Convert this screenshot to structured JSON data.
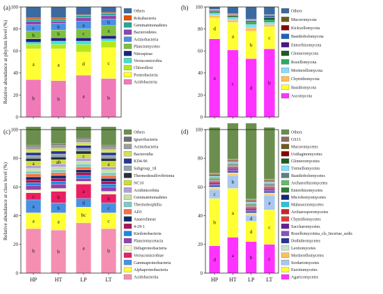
{
  "chart_data": [
    {
      "panel_label": "(a)",
      "type": "stacked-bar",
      "ylabel": "Relative abundance at phylum level (%)",
      "ylim": [
        0,
        100
      ],
      "yticks": [
        0,
        20,
        40,
        60,
        80,
        100
      ],
      "categories": [
        "HP",
        "HT",
        "LP",
        "LT"
      ],
      "show_xlabels": false,
      "series": [
        {
          "name": "Acidobacteria",
          "color": "#f07ab8",
          "values": [
            34,
            33,
            38,
            35
          ],
          "labels": [
            "b",
            "b",
            "a",
            "b"
          ]
        },
        {
          "name": "Proteobacteria",
          "color": "#ffff33",
          "values": [
            28,
            29,
            21,
            28
          ],
          "labels": [
            "a",
            "a",
            "d",
            "c"
          ]
        },
        {
          "name": "Chloroflexi",
          "color": "#b5e61d",
          "values": [
            4,
            4,
            7,
            6
          ],
          "labels": [
            "",
            "",
            "",
            ""
          ]
        },
        {
          "name": "Verrucomicrobia",
          "color": "#40e0d0",
          "values": [
            2,
            3,
            3,
            2
          ],
          "labels": [
            "",
            "",
            "",
            ""
          ]
        },
        {
          "name": "Nitrospirae",
          "color": "#1a237e",
          "values": [
            3,
            3,
            3,
            3
          ],
          "labels": [
            "",
            "",
            "",
            ""
          ]
        },
        {
          "name": "Planctomycetes",
          "color": "#7fbf3f",
          "values": [
            7,
            7,
            8,
            9
          ],
          "labels": [
            "b",
            "b",
            "c",
            "a"
          ]
        },
        {
          "name": "Actinobacteria",
          "color": "#4a90e2",
          "values": [
            6,
            6,
            7,
            6
          ],
          "labels": [
            "c",
            "b",
            "a",
            "b"
          ]
        },
        {
          "name": "Bacteroidetes",
          "color": "#8e44ad",
          "values": [
            3,
            2,
            3,
            3
          ],
          "labels": [
            "",
            "",
            "",
            ""
          ]
        },
        {
          "name": "Gemmatimonadetes",
          "color": "#26a69a",
          "values": [
            2,
            2,
            2,
            2
          ],
          "labels": [
            "",
            "",
            "",
            ""
          ]
        },
        {
          "name": "Rokubacteria",
          "color": "#e65100",
          "values": [
            1,
            1,
            1,
            1
          ],
          "labels": [
            "",
            "",
            "",
            ""
          ]
        },
        {
          "name": "Others",
          "color": "#3b6aa0",
          "values": [
            10,
            10,
            7,
            5
          ],
          "labels": [
            "",
            "",
            "",
            ""
          ]
        }
      ]
    },
    {
      "panel_label": "(b)",
      "type": "stacked-bar",
      "ylabel": "",
      "ylim": [
        0,
        100
      ],
      "yticks": [
        0,
        20,
        40,
        60,
        80,
        100
      ],
      "categories": [
        "HP",
        "HT",
        "LP",
        "LT"
      ],
      "show_xlabels": false,
      "series": [
        {
          "name": "Ascomycota",
          "color": "#ff33ff",
          "values": [
            71,
            61,
            53,
            62
          ],
          "labels": [
            "a",
            "c",
            "d",
            "b"
          ]
        },
        {
          "name": "Basidiomycota",
          "color": "#ffff33",
          "values": [
            19,
            25,
            25,
            20
          ],
          "labels": [
            "d",
            "a",
            "b",
            "c"
          ]
        },
        {
          "name": "Chytridiomycota",
          "color": "#ffc04d",
          "values": [
            2,
            2,
            3,
            2
          ],
          "labels": [
            "",
            "",
            "",
            ""
          ]
        },
        {
          "name": "Mortierellomycota",
          "color": "#7fdfff",
          "values": [
            2,
            2,
            3,
            2
          ],
          "labels": [
            "",
            "",
            "",
            ""
          ]
        },
        {
          "name": "Rozellomycota",
          "color": "#27ae60",
          "values": [
            1,
            1,
            2,
            2
          ],
          "labels": [
            "",
            "",
            "",
            ""
          ]
        },
        {
          "name": "Glomeromycota",
          "color": "#1b5e20",
          "values": [
            1,
            1,
            1,
            2
          ],
          "labels": [
            "",
            "",
            "",
            ""
          ]
        },
        {
          "name": "Entorrhizomycota",
          "color": "#4a148c",
          "values": [
            0.5,
            0.5,
            0.5,
            1
          ],
          "labels": [
            "",
            "",
            "",
            ""
          ]
        },
        {
          "name": "Basidiobolomycota",
          "color": "#1565c0",
          "values": [
            0.5,
            0.5,
            0.5,
            1
          ],
          "labels": [
            "",
            "",
            "",
            ""
          ]
        },
        {
          "name": "Kickxellomycota",
          "color": "#8b0000",
          "values": [
            0.5,
            0.5,
            0.5,
            0.5
          ],
          "labels": [
            "",
            "",
            "",
            ""
          ]
        },
        {
          "name": "Mucoromycota",
          "color": "#6d5d1a",
          "values": [
            0.5,
            0.5,
            0.5,
            0.5
          ],
          "labels": [
            "",
            "",
            "",
            ""
          ]
        },
        {
          "name": "Others",
          "color": "#3b6aa0",
          "values": [
            2,
            6,
            11,
            7
          ],
          "labels": [
            "",
            "",
            "",
            ""
          ]
        }
      ]
    },
    {
      "panel_label": "(c)",
      "type": "stacked-bar",
      "ylabel": "Relative abundance at class level (%)",
      "ylim": [
        0,
        100
      ],
      "yticks": [
        0,
        20,
        40,
        60,
        80,
        100
      ],
      "categories": [
        "HP",
        "HT",
        "LP",
        "LT"
      ],
      "show_xlabels": true,
      "series": [
        {
          "name": "Acidobacteriia",
          "color": "#f48fb1",
          "values": [
            31,
            30,
            35,
            31
          ],
          "labels": [
            "b",
            "b",
            "a",
            "b"
          ]
        },
        {
          "name": "Alphaproteobacteria",
          "color": "#ffff33",
          "values": [
            11,
            12,
            11,
            11
          ],
          "labels": [
            "a",
            "a",
            "bc",
            "c"
          ]
        },
        {
          "name": "Gammaproteobacteria",
          "color": "#4a90e2",
          "values": [
            9,
            7,
            6,
            7
          ],
          "labels": [
            "a",
            "b",
            "d",
            "c"
          ]
        },
        {
          "name": "Verrucomicrobiae",
          "color": "#e91e63",
          "values": [
            5,
            8,
            10,
            6
          ],
          "labels": [
            "c",
            "b",
            "a",
            "b"
          ]
        },
        {
          "name": "Deltaproteobacteria",
          "color": "#f5f5c8",
          "values": [
            2,
            2,
            2,
            2
          ],
          "labels": [
            "",
            "",
            "",
            ""
          ]
        },
        {
          "name": "Planctomycetacia",
          "color": "#8e44ad",
          "values": [
            3,
            3,
            2,
            3
          ],
          "labels": [
            "",
            "",
            "",
            ""
          ]
        },
        {
          "name": "Ktedonobacteria",
          "color": "#1e88e5",
          "values": [
            2,
            2,
            2,
            2
          ],
          "labels": [
            "",
            "",
            "",
            ""
          ]
        },
        {
          "name": "4-29-1",
          "color": "#ad1457",
          "values": [
            2,
            2,
            2,
            2
          ],
          "labels": [
            "",
            "",
            "",
            ""
          ]
        },
        {
          "name": "Anaerolineae",
          "color": "#0d2b6b",
          "values": [
            2,
            2,
            2,
            2
          ],
          "labels": [
            "",
            "",
            "",
            ""
          ]
        },
        {
          "name": "AD3",
          "color": "#ff7043",
          "values": [
            2,
            2,
            2,
            2
          ],
          "labels": [
            "",
            "",
            "",
            ""
          ]
        },
        {
          "name": "Thermoleophilia",
          "color": "#80cbc4",
          "values": [
            2,
            2,
            2,
            2
          ],
          "labels": [
            "",
            "",
            "",
            ""
          ]
        },
        {
          "name": "Gemmatimonadetes",
          "color": "#c5e1a5",
          "values": [
            2,
            2,
            2,
            2
          ],
          "labels": [
            "",
            "",
            "",
            ""
          ]
        },
        {
          "name": "Acidimicrobiia",
          "color": "#b39ddb",
          "values": [
            2,
            2,
            2,
            2
          ],
          "labels": [
            "",
            "",
            "",
            ""
          ]
        },
        {
          "name": "NC10",
          "color": "#cddc39",
          "values": [
            3,
            3,
            3,
            4
          ],
          "labels": [
            "a",
            "ab",
            "c",
            "a"
          ]
        },
        {
          "name": "Thermodesulfovibrionia",
          "color": "#263238",
          "values": [
            2,
            2,
            2,
            2
          ],
          "labels": [
            "",
            "",
            "",
            ""
          ]
        },
        {
          "name": "Subgroup_18",
          "color": "#90a4ae",
          "values": [
            2,
            2,
            2,
            2
          ],
          "labels": [
            "",
            "",
            "",
            ""
          ]
        },
        {
          "name": "KD4-96",
          "color": "#283593",
          "values": [
            2,
            2,
            2,
            2
          ],
          "labels": [
            "",
            "",
            "",
            ""
          ]
        },
        {
          "name": "Bacteroidia",
          "color": "#d4e157",
          "values": [
            2,
            2,
            2,
            2
          ],
          "labels": [
            "",
            "",
            "",
            ""
          ]
        },
        {
          "name": "Actinobacteria",
          "color": "#9e9e9e",
          "values": [
            2,
            2,
            2,
            2
          ],
          "labels": [
            "",
            "",
            "",
            ""
          ]
        },
        {
          "name": "Ignavibacteria",
          "color": "#6d6d6d",
          "values": [
            1,
            1,
            1,
            1
          ],
          "labels": [
            "",
            "",
            "",
            ""
          ]
        },
        {
          "name": "Others",
          "color": "#6b8e4e",
          "values": [
            13,
            12,
            8,
            13
          ],
          "labels": [
            "",
            "",
            "",
            ""
          ]
        }
      ]
    },
    {
      "panel_label": "(d)",
      "type": "stacked-bar",
      "ylabel": "",
      "ylim": [
        0,
        100
      ],
      "yticks": [
        0,
        20,
        40,
        60,
        80,
        100
      ],
      "categories": [
        "HP",
        "HT",
        "LP",
        "LT"
      ],
      "show_xlabels": true,
      "series": [
        {
          "name": "Agaricomycetes",
          "color": "#ff33ff",
          "values": [
            19,
            25,
            22,
            20
          ],
          "labels": [
            "d",
            "a",
            "b",
            "c"
          ]
        },
        {
          "name": "Eurotiomycetes",
          "color": "#ffff33",
          "values": [
            33,
            34,
            14,
            24
          ],
          "labels": [
            "b",
            "a",
            "d",
            "c"
          ]
        },
        {
          "name": "Sordariomycetes",
          "color": "#a8c8f0",
          "values": [
            6,
            9,
            4,
            10
          ],
          "labels": [
            "c",
            "b",
            "d",
            "a"
          ]
        },
        {
          "name": "Mortierellomycetes",
          "color": "#ffc04d",
          "values": [
            1,
            1,
            1,
            1
          ],
          "labels": [
            "",
            "",
            "",
            ""
          ]
        },
        {
          "name": "Leotiomycetes",
          "color": "#c8e6c9",
          "values": [
            1,
            1,
            1,
            1
          ],
          "labels": [
            "",
            "",
            "",
            ""
          ]
        },
        {
          "name": "Dothideomycetes",
          "color": "#283593",
          "values": [
            1,
            1,
            1,
            1
          ],
          "labels": [
            "",
            "",
            "",
            ""
          ]
        },
        {
          "name": "Rozellomycotina_cls_Incertae_sedis",
          "color": "#7e57c2",
          "values": [
            1,
            1,
            1,
            1
          ],
          "labels": [
            "",
            "",
            "",
            ""
          ]
        },
        {
          "name": "Saccharomycetes",
          "color": "#6a1b9a",
          "values": [
            1,
            1,
            1,
            1
          ],
          "labels": [
            "",
            "",
            "",
            ""
          ]
        },
        {
          "name": "Chytridiomycetes",
          "color": "#e53935",
          "values": [
            1,
            1,
            1,
            1
          ],
          "labels": [
            "",
            "",
            "",
            ""
          ]
        },
        {
          "name": "Archaeosporomycetes",
          "color": "#c62828",
          "values": [
            0.5,
            0.5,
            0.5,
            0.5
          ],
          "labels": [
            "",
            "",
            "",
            ""
          ]
        },
        {
          "name": "Malasseziomycetes",
          "color": "#26c6da",
          "values": [
            0.5,
            0.5,
            0.5,
            0.5
          ],
          "labels": [
            "",
            "",
            "",
            ""
          ]
        },
        {
          "name": "Microbotryomycetes",
          "color": "#1a237e",
          "values": [
            0.5,
            0.5,
            0.5,
            0.5
          ],
          "labels": [
            "",
            "",
            "",
            ""
          ]
        },
        {
          "name": "Entorrhizomycetes",
          "color": "#2e7d32",
          "values": [
            0.5,
            0.5,
            0.5,
            0.5
          ],
          "labels": [
            "",
            "",
            "",
            ""
          ]
        },
        {
          "name": "Archaeorhizomycetes",
          "color": "#66bb6a",
          "values": [
            0.5,
            0.5,
            0.5,
            0.5
          ],
          "labels": [
            "",
            "",
            "",
            ""
          ]
        },
        {
          "name": "Basidiobolomycetes",
          "color": "#607d8b",
          "values": [
            0.5,
            0.5,
            0.5,
            0.5
          ],
          "labels": [
            "",
            "",
            "",
            ""
          ]
        },
        {
          "name": "Tremellomycetes",
          "color": "#7fdfff",
          "values": [
            0.5,
            0.5,
            0.5,
            0.5
          ],
          "labels": [
            "",
            "",
            "",
            ""
          ]
        },
        {
          "name": "Glomeromycetes",
          "color": "#1b5e20",
          "values": [
            0.5,
            0.5,
            0.5,
            0.5
          ],
          "labels": [
            "",
            "",
            "",
            ""
          ]
        },
        {
          "name": "Ustilaginomycetes",
          "color": "#8b0000",
          "values": [
            0.5,
            0.5,
            0.5,
            0.5
          ],
          "labels": [
            "",
            "",
            "",
            ""
          ]
        },
        {
          "name": "Mucoromycetes",
          "color": "#6d5d1a",
          "values": [
            0.5,
            0.5,
            0.5,
            0.5
          ],
          "labels": [
            "",
            "",
            "",
            ""
          ]
        },
        {
          "name": "GS13",
          "color": "#8d6e63",
          "values": [
            0.5,
            0.5,
            0.5,
            0.5
          ],
          "labels": [
            "",
            "",
            "",
            ""
          ]
        },
        {
          "name": "Others",
          "color": "#6b8e4e",
          "values": [
            32,
            25,
            53,
            36
          ],
          "labels": [
            "",
            "",
            "",
            ""
          ]
        }
      ]
    }
  ]
}
